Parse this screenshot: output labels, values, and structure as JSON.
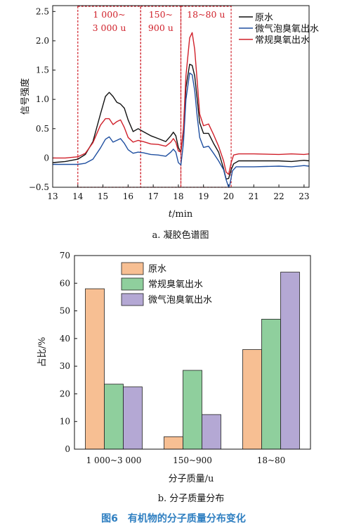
{
  "figure_title": "图6　有机物的分子质量分布变化",
  "colors": {
    "raw_line": "#111111",
    "micro_line": "#1f4fa0",
    "conv_line": "#d0202a",
    "region": "#d0202a",
    "bar_raw": "#f7bf93",
    "bar_conv": "#8fcf9d",
    "bar_micro": "#b4a8d4",
    "title": "#2f7fc1"
  },
  "chart_data": [
    {
      "type": "line",
      "caption": "a. 凝胶色谱图",
      "xlabel_italic": "t",
      "xlabel_rest": "/min",
      "ylabel": "信号强度",
      "xlim": [
        13,
        23.2
      ],
      "ylim": [
        -0.5,
        2.6
      ],
      "xticks": [
        "13",
        "14",
        "15",
        "16",
        "17",
        "18",
        "19",
        "20",
        "21",
        "22",
        "23"
      ],
      "yticks": [
        "−0.5",
        "0",
        "0.5",
        "1.0",
        "1.5",
        "2.0",
        "2.5"
      ],
      "ytick_values": [
        -0.5,
        0,
        0.5,
        1.0,
        1.5,
        2.0,
        2.5
      ],
      "legend": [
        "原水",
        "微气泡臭氧出水",
        "常规臭氧出水"
      ],
      "regions": [
        {
          "x0": 14.0,
          "x1": 16.5,
          "line1": "1 000~",
          "line2": "3 000 u"
        },
        {
          "x0": 16.5,
          "x1": 18.1,
          "line1": "150~",
          "line2": "900 u"
        },
        {
          "x0": 18.1,
          "x1": 20.1,
          "line1": "18~80 u",
          "line2": ""
        }
      ],
      "series": [
        {
          "name": "原水",
          "x": [
            13.0,
            13.5,
            14.0,
            14.3,
            14.6,
            14.9,
            15.1,
            15.25,
            15.4,
            15.55,
            15.7,
            15.85,
            16.0,
            16.2,
            16.4,
            16.6,
            16.9,
            17.2,
            17.5,
            17.7,
            17.8,
            17.9,
            18.0,
            18.1,
            18.2,
            18.3,
            18.45,
            18.55,
            18.65,
            18.75,
            18.85,
            19.0,
            19.2,
            19.4,
            19.6,
            19.8,
            19.9,
            20.0,
            20.1,
            20.2,
            20.4,
            21.0,
            22.0,
            22.5,
            23.0,
            23.2
          ],
          "y": [
            -0.08,
            -0.06,
            -0.02,
            0.06,
            0.28,
            0.75,
            1.05,
            1.12,
            1.05,
            0.95,
            0.92,
            0.85,
            0.65,
            0.45,
            0.5,
            0.45,
            0.38,
            0.33,
            0.28,
            0.38,
            0.44,
            0.38,
            0.18,
            0.1,
            0.45,
            1.2,
            1.6,
            1.58,
            1.4,
            1.0,
            0.6,
            0.42,
            0.42,
            0.25,
            0.1,
            -0.18,
            -0.36,
            -0.35,
            -0.2,
            -0.1,
            -0.05,
            -0.05,
            -0.05,
            -0.06,
            -0.04,
            -0.05
          ]
        },
        {
          "name": "微气泡臭氧出水",
          "x": [
            13.0,
            13.5,
            14.0,
            14.3,
            14.6,
            14.9,
            15.1,
            15.25,
            15.4,
            15.55,
            15.7,
            15.85,
            16.0,
            16.2,
            16.4,
            16.6,
            16.9,
            17.2,
            17.5,
            17.7,
            17.8,
            17.9,
            18.0,
            18.1,
            18.2,
            18.3,
            18.45,
            18.55,
            18.65,
            18.75,
            18.85,
            19.0,
            19.2,
            19.4,
            19.6,
            19.8,
            19.9,
            20.0,
            20.05,
            20.15,
            20.3,
            21.0,
            22.0,
            22.5,
            23.0,
            23.2
          ],
          "y": [
            -0.11,
            -0.11,
            -0.11,
            -0.09,
            -0.02,
            0.17,
            0.32,
            0.36,
            0.27,
            0.3,
            0.33,
            0.25,
            0.14,
            0.08,
            0.1,
            0.09,
            0.06,
            0.05,
            0.03,
            0.1,
            0.15,
            0.1,
            -0.08,
            -0.12,
            0.25,
            1.0,
            1.45,
            1.42,
            1.15,
            0.7,
            0.35,
            0.18,
            0.2,
            0.08,
            -0.05,
            -0.2,
            -0.37,
            -0.5,
            -0.45,
            -0.22,
            -0.15,
            -0.15,
            -0.14,
            -0.15,
            -0.13,
            -0.14
          ]
        },
        {
          "name": "常规臭氧出水",
          "x": [
            13.0,
            13.5,
            14.0,
            14.3,
            14.6,
            14.9,
            15.1,
            15.25,
            15.4,
            15.55,
            15.7,
            15.85,
            16.0,
            16.2,
            16.4,
            16.6,
            16.9,
            17.2,
            17.5,
            17.7,
            17.8,
            17.9,
            18.0,
            18.1,
            18.2,
            18.3,
            18.45,
            18.55,
            18.65,
            18.75,
            18.85,
            19.0,
            19.2,
            19.4,
            19.6,
            19.8,
            19.9,
            20.0,
            20.1,
            20.2,
            20.4,
            21.0,
            22.0,
            22.5,
            23.0,
            23.2
          ],
          "y": [
            0.0,
            0.0,
            0.02,
            0.08,
            0.26,
            0.56,
            0.67,
            0.67,
            0.57,
            0.62,
            0.65,
            0.52,
            0.35,
            0.27,
            0.3,
            0.28,
            0.24,
            0.23,
            0.2,
            0.27,
            0.33,
            0.27,
            0.12,
            0.1,
            0.5,
            1.4,
            2.05,
            2.14,
            1.85,
            1.3,
            0.75,
            0.55,
            0.58,
            0.4,
            0.2,
            -0.05,
            -0.24,
            -0.28,
            -0.08,
            0.05,
            0.07,
            0.07,
            0.06,
            0.07,
            0.06,
            0.07
          ]
        }
      ]
    },
    {
      "type": "bar",
      "caption": "b. 分子质量分布",
      "xlabel": "分子质量/u",
      "ylabel": "占比/%",
      "ylim": [
        0,
        70
      ],
      "yticks": [
        "0",
        "10",
        "20",
        "30",
        "40",
        "50",
        "60",
        "70"
      ],
      "ytick_values": [
        0,
        10,
        20,
        30,
        40,
        50,
        60,
        70
      ],
      "categories": [
        "1 000~3 000",
        "150~900",
        "18~80"
      ],
      "legend": [
        "原水",
        "常规臭氧出水",
        "微气泡臭氧出水"
      ],
      "series": [
        {
          "name": "原水",
          "values": [
            58,
            4.5,
            36
          ]
        },
        {
          "name": "常规臭氧出水",
          "values": [
            23.5,
            28.5,
            47
          ]
        },
        {
          "name": "微气泡臭氧出水",
          "values": [
            22.5,
            12.5,
            64
          ]
        }
      ]
    }
  ]
}
